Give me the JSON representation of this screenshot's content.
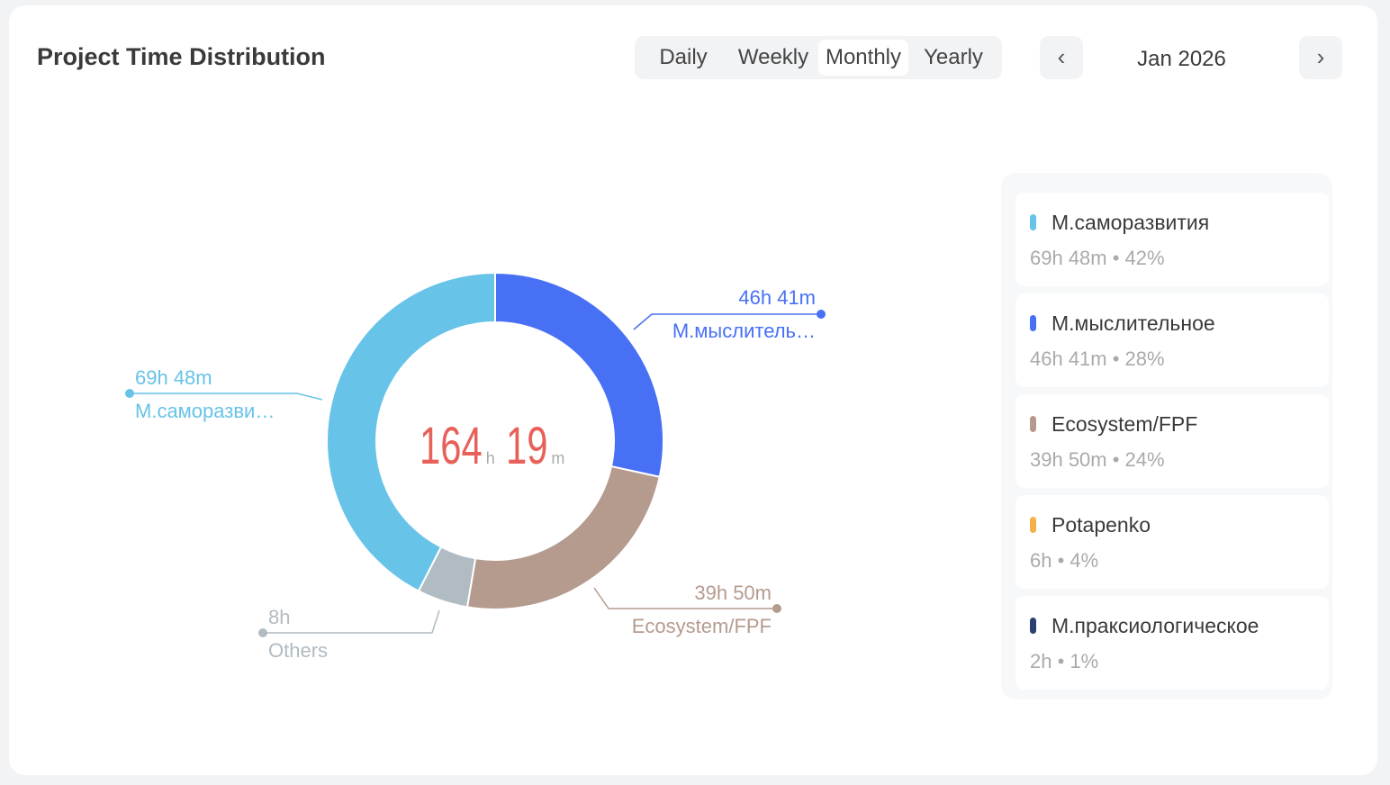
{
  "header": {
    "title": "Project Time Distribution",
    "tabs": [
      "Daily",
      "Weekly",
      "Monthly",
      "Yearly"
    ],
    "active_tab": "Monthly",
    "period": "Jan 2026",
    "prev_icon": "chevron-left-icon",
    "next_icon": "chevron-right-icon"
  },
  "center": {
    "hours": "164",
    "h": "h",
    "minutes": "19",
    "m": "m"
  },
  "chart_data": {
    "type": "pie",
    "title": "Project Time Distribution",
    "total": "164h 19m",
    "slices": [
      {
        "name": "М.мыслитель…",
        "value_hours": 46.68,
        "label": "46h 41m",
        "color": "#4870f5"
      },
      {
        "name": "Ecosystem/FPF",
        "value_hours": 39.83,
        "label": "39h 50m",
        "color": "#b59a8e"
      },
      {
        "name": "Others",
        "value_hours": 8,
        "label": "8h",
        "color": "#b1bbc2"
      },
      {
        "name": "М.саморазви…",
        "value_hours": 69.8,
        "label": "69h 48m",
        "color": "#67c3e8"
      }
    ]
  },
  "legend": [
    {
      "name": "М.саморазвития",
      "stats": "69h 48m • 42%",
      "color": "#67c3e8"
    },
    {
      "name": "М.мыслительное",
      "stats": "46h 41m • 28%",
      "color": "#4870f5"
    },
    {
      "name": "Ecosystem/FPF",
      "stats": "39h 50m • 24%",
      "color": "#b59a8e"
    },
    {
      "name": "Potapenko",
      "stats": "6h • 4%",
      "color": "#f5b04a"
    },
    {
      "name": "М.праксиологическое",
      "stats": "2h • 1%",
      "color": "#2b4070"
    }
  ]
}
